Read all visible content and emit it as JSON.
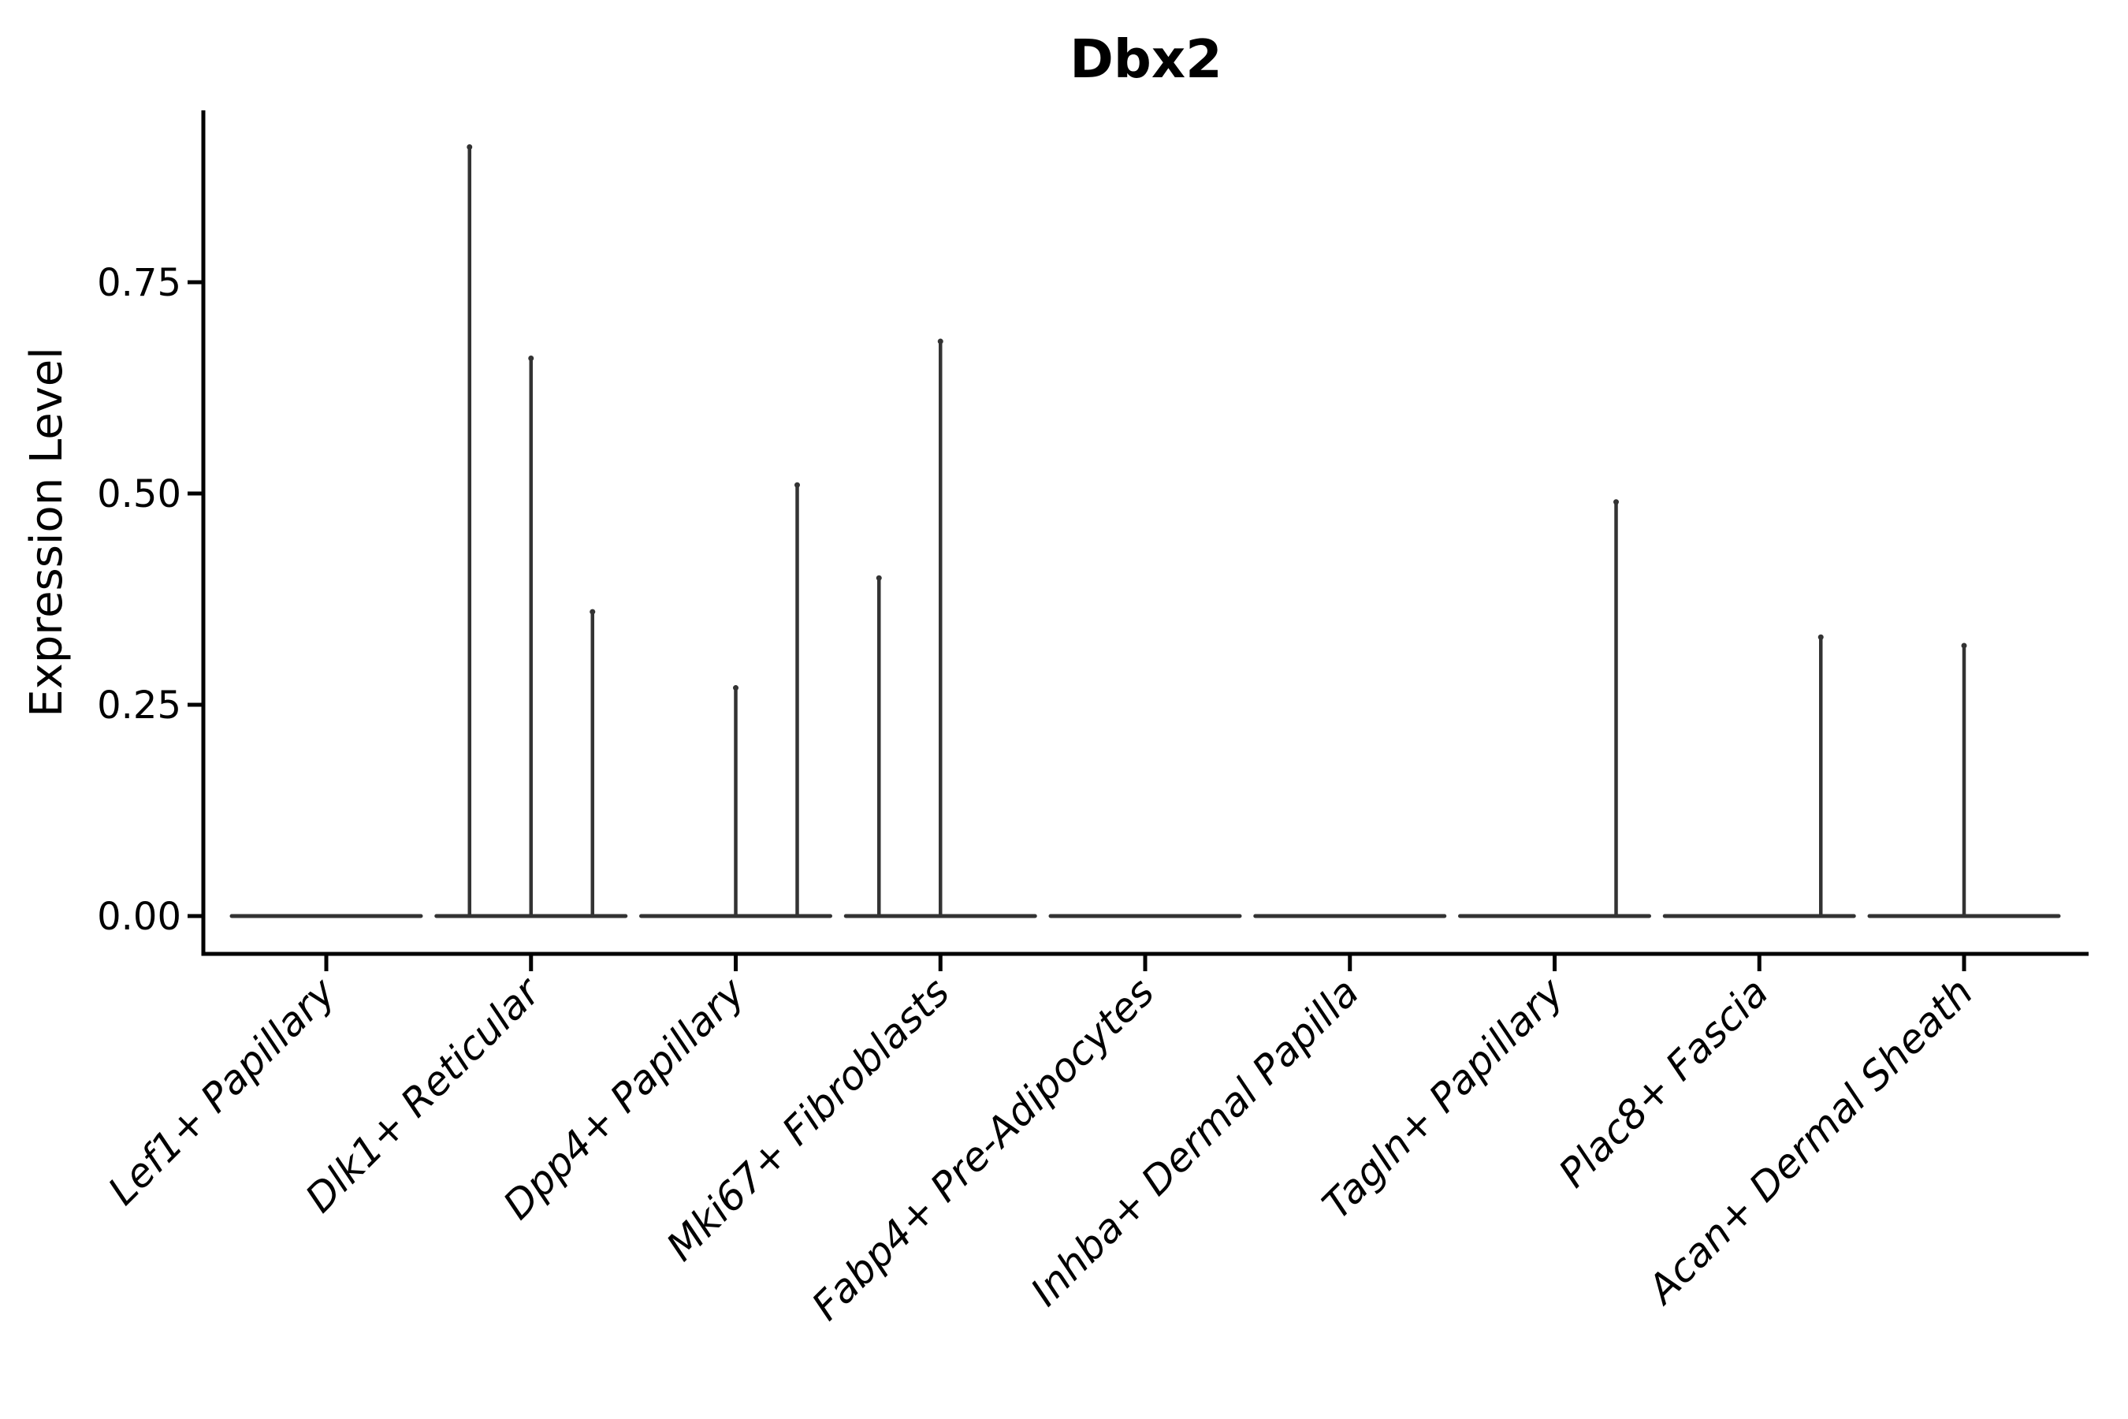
{
  "chart_data": {
    "type": "violin",
    "title": "Dbx2",
    "xlabel": "",
    "ylabel": "Expression Level",
    "categories": [
      "Lef1+ Papillary",
      "Dlk1+ Reticular",
      "Dpp4+ Papillary",
      "Mki67+ Fibroblasts",
      "Fabp4+ Pre-Adipocytes",
      "Inhba+ Dermal Papilla",
      "Tagln+ Papillary",
      "Plac8+ Fascia",
      "Acan+ Dermal Sheath"
    ],
    "ytick_values": [
      0,
      0.25,
      0.5,
      0.75
    ],
    "ytick_labels": [
      "0.00",
      "0.25",
      "0.50",
      "0.75"
    ],
    "ylim": [
      -0.045,
      0.955
    ],
    "grid": false,
    "legend_position": "none",
    "series": [
      {
        "name": "Lef1+ Papillary",
        "baseline_value": 0,
        "spikes": []
      },
      {
        "name": "Dlk1+ Reticular",
        "baseline_value": 0,
        "spikes": [
          {
            "offset": -0.65,
            "value": 0.91
          },
          {
            "offset": 0.0,
            "value": 0.66
          },
          {
            "offset": 0.65,
            "value": 0.36
          }
        ]
      },
      {
        "name": "Dpp4+ Papillary",
        "baseline_value": 0,
        "spikes": [
          {
            "offset": 0.0,
            "value": 0.27
          },
          {
            "offset": 0.65,
            "value": 0.51
          }
        ]
      },
      {
        "name": "Mki67+ Fibroblasts",
        "baseline_value": 0,
        "spikes": [
          {
            "offset": -0.65,
            "value": 0.4
          },
          {
            "offset": 0.0,
            "value": 0.68
          }
        ]
      },
      {
        "name": "Fabp4+ Pre-Adipocytes",
        "baseline_value": 0,
        "spikes": []
      },
      {
        "name": "Inhba+ Dermal Papilla",
        "baseline_value": 0,
        "spikes": []
      },
      {
        "name": "Tagln+ Papillary",
        "baseline_value": 0,
        "spikes": [
          {
            "offset": 0.65,
            "value": 0.49
          }
        ]
      },
      {
        "name": "Plac8+ Fascia",
        "baseline_value": 0,
        "spikes": [
          {
            "offset": 0.65,
            "value": 0.33
          }
        ]
      },
      {
        "name": "Acan+ Dermal Sheath",
        "baseline_value": 0,
        "spikes": [
          {
            "offset": 0.0,
            "value": 0.32
          }
        ]
      }
    ],
    "colors": {
      "violin": "#333333",
      "axis": "#000000",
      "text": "#000000",
      "background": "#ffffff"
    }
  }
}
